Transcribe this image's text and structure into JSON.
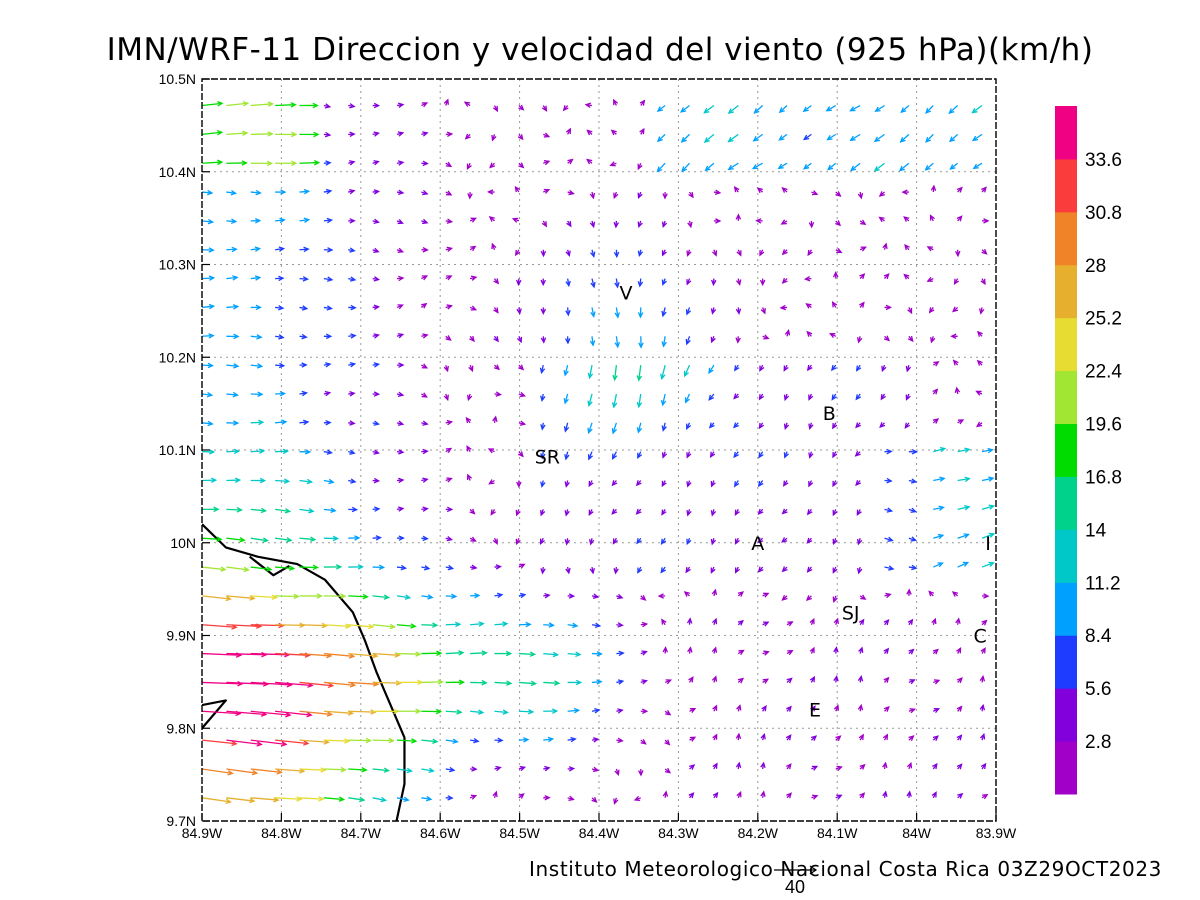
{
  "chart_data": {
    "type": "vector_field",
    "title": "IMN/WRF-11 Direccion y velocidad del viento (925 hPa)(km/h)",
    "footer": "Instituto Meteorologico Nacional Costa Rica 03Z29OCT2023",
    "reference_vector": {
      "label": "40",
      "magnitude_kmh": 40
    },
    "xlim": [
      -84.9,
      -83.9
    ],
    "ylim": [
      9.7,
      10.5
    ],
    "x_ticks": [
      {
        "value": -84.9,
        "label": "84.9W"
      },
      {
        "value": -84.8,
        "label": "84.8W"
      },
      {
        "value": -84.7,
        "label": "84.7W"
      },
      {
        "value": -84.6,
        "label": "84.6W"
      },
      {
        "value": -84.5,
        "label": "84.5W"
      },
      {
        "value": -84.4,
        "label": "84.4W"
      },
      {
        "value": -84.3,
        "label": "84.3W"
      },
      {
        "value": -84.2,
        "label": "84.2W"
      },
      {
        "value": -84.1,
        "label": "84.1W"
      },
      {
        "value": -84.0,
        "label": "84W"
      },
      {
        "value": -83.9,
        "label": "83.9W"
      }
    ],
    "y_ticks": [
      {
        "value": 9.7,
        "label": "9.7N"
      },
      {
        "value": 9.8,
        "label": "9.8N"
      },
      {
        "value": 9.9,
        "label": "9.9N"
      },
      {
        "value": 10.0,
        "label": "10N"
      },
      {
        "value": 10.1,
        "label": "10.1N"
      },
      {
        "value": 10.2,
        "label": "10.2N"
      },
      {
        "value": 10.3,
        "label": "10.3N"
      },
      {
        "value": 10.4,
        "label": "10.4N"
      },
      {
        "value": 10.5,
        "label": "10.5N"
      }
    ],
    "grid": true,
    "colorbar": {
      "position": "right",
      "bins": [
        {
          "color": "#a000c8"
        },
        {
          "color": "#8200dc"
        },
        {
          "color": "#1e3cff"
        },
        {
          "color": "#00a0ff"
        },
        {
          "color": "#00c8c8"
        },
        {
          "color": "#00d28c"
        },
        {
          "color": "#00dc00"
        },
        {
          "color": "#a0e632"
        },
        {
          "color": "#e6dc32"
        },
        {
          "color": "#e6af2d"
        },
        {
          "color": "#f08228"
        },
        {
          "color": "#fa3c3c"
        },
        {
          "color": "#f00082"
        }
      ],
      "tick_labels": [
        "2.8",
        "5.6",
        "8.4",
        "11.2",
        "14",
        "16.8",
        "19.6",
        "22.4",
        "25.2",
        "28",
        "30.8",
        "33.6"
      ]
    },
    "stations": [
      {
        "label": "V",
        "lon": -84.366,
        "lat": 10.27
      },
      {
        "label": "SR",
        "lon": -84.465,
        "lat": 10.093
      },
      {
        "label": "B",
        "lon": -84.11,
        "lat": 10.14
      },
      {
        "label": "A",
        "lon": -84.2,
        "lat": 10.0
      },
      {
        "label": "SJ",
        "lon": -84.083,
        "lat": 9.925
      },
      {
        "label": "C",
        "lon": -83.92,
        "lat": 9.9
      },
      {
        "label": "E",
        "lon": -84.128,
        "lat": 9.82
      },
      {
        "label": "I",
        "lon": -83.91,
        "lat": 10.0
      }
    ],
    "coastline": [
      [
        [
          -84.9,
          10.02
        ],
        [
          -84.87,
          9.995
        ],
        [
          -84.83,
          9.985
        ],
        [
          -84.78,
          9.977
        ],
        [
          -84.745,
          9.96
        ],
        [
          -84.71,
          9.925
        ],
        [
          -84.695,
          9.895
        ],
        [
          -84.68,
          9.86
        ],
        [
          -84.66,
          9.82
        ],
        [
          -84.645,
          9.79
        ],
        [
          -84.645,
          9.74
        ],
        [
          -84.655,
          9.7
        ]
      ],
      [
        [
          -84.9,
          9.8
        ],
        [
          -84.87,
          9.83
        ],
        [
          -84.9,
          9.825
        ]
      ]
    ],
    "coastline_spur": [
      [
        -84.79,
        9.975
      ],
      [
        -84.81,
        9.965
      ],
      [
        -84.84,
        9.985
      ]
    ]
  }
}
